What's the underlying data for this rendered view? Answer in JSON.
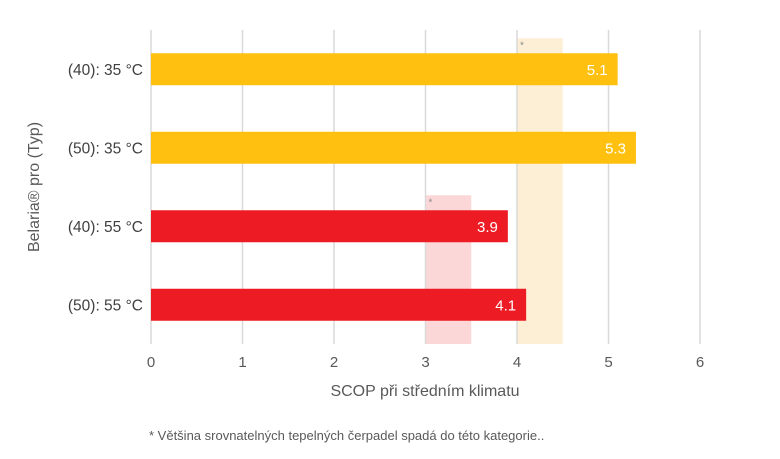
{
  "chart_data": {
    "type": "bar",
    "orientation": "horizontal",
    "title": "",
    "xlabel": "SCOP při středním klimatu",
    "ylabel": "Belaria® pro (Typ)",
    "xlim": [
      0,
      6
    ],
    "xticks": [
      0,
      1,
      2,
      3,
      4,
      5,
      6
    ],
    "grid": true,
    "categories": [
      "(40): 35 °C",
      "(50): 35 °C",
      "(40): 55 °C",
      "(50): 55 °C"
    ],
    "values": [
      5.1,
      5.3,
      3.9,
      4.1
    ],
    "value_labels": [
      "5.1",
      "5.3",
      "3.9",
      "4.1"
    ],
    "bar_colors": [
      "#FFC010",
      "#FFC010",
      "#ED1C24",
      "#ED1C24"
    ],
    "reference_bands": [
      {
        "name": "typical-range-35",
        "from": 4.0,
        "to": 4.5,
        "color": "#FDEFD6",
        "marker": "*",
        "applies_to": [
          "(40): 35 °C",
          "(50): 35 °C",
          "(40): 55 °C",
          "(50): 55 °C"
        ]
      },
      {
        "name": "typical-range-55",
        "from": 3.0,
        "to": 3.5,
        "color": "#FBD7D8",
        "marker": "*",
        "applies_to": [
          "(40): 55 °C",
          "(50): 55 °C"
        ]
      }
    ],
    "footnote": "* Většina srovnatelných tepelných čerpadel spadá do této kategorie.."
  }
}
